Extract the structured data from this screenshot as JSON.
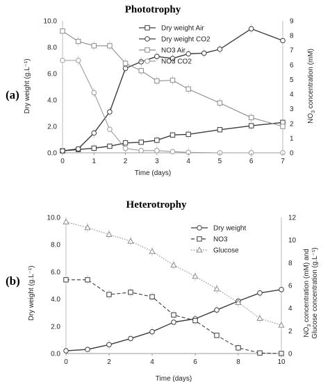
{
  "chart_data": [
    {
      "panel_label": "(a)",
      "type": "line",
      "title": "Phototrophy",
      "xlabel": "Time (days)",
      "ylabel_left": "Dry weight (g.L⁻¹)",
      "ylabel_right_parts": [
        "NO",
        "3",
        " concentration (mM)"
      ],
      "xlim": [
        0,
        7
      ],
      "ylim_left": [
        0,
        10
      ],
      "ylim_right": [
        0,
        9
      ],
      "x_ticks": [
        "0",
        "1",
        "2",
        "3",
        "4",
        "5",
        "6",
        "7"
      ],
      "y_left_ticks": [
        "0.0",
        "2.0",
        "4.0",
        "6.0",
        "8.0",
        "10.0"
      ],
      "y_right_ticks": [
        "0",
        "1",
        "2",
        "3",
        "4",
        "5",
        "6",
        "7",
        "8",
        "9"
      ],
      "legend_position": "right",
      "series": [
        {
          "name": "Dry weight Air",
          "axis": "left",
          "marker": "square",
          "line": "solid",
          "color": "#3a3a3a",
          "x": [
            0,
            0.5,
            1,
            1.5,
            2,
            2.5,
            3,
            3.5,
            4,
            5,
            6,
            7
          ],
          "y": [
            0.15,
            0.25,
            0.35,
            0.5,
            0.75,
            0.8,
            0.95,
            1.35,
            1.4,
            1.75,
            2.05,
            2.3
          ]
        },
        {
          "name": "Dry weight CO2",
          "axis": "left",
          "marker": "circle",
          "line": "solid",
          "color": "#3a3a3a",
          "x": [
            0,
            0.5,
            1,
            1.5,
            2,
            2.5,
            3,
            3.5,
            4,
            4.5,
            5,
            6,
            7
          ],
          "y": [
            0.15,
            0.3,
            1.5,
            3.1,
            6.4,
            6.9,
            7.3,
            7.15,
            7.5,
            7.55,
            7.85,
            9.4,
            8.5
          ]
        },
        {
          "name": "NO3 Air",
          "axis": "right",
          "marker": "square",
          "line": "solid",
          "color": "#8a8a8a",
          "x": [
            0,
            0.5,
            1,
            1.5,
            2,
            2.5,
            3,
            3.5,
            4,
            5,
            6,
            7
          ],
          "y": [
            8.3,
            7.6,
            7.3,
            7.3,
            6.1,
            5.6,
            4.9,
            4.95,
            4.35,
            3.4,
            2.4,
            1.8
          ]
        },
        {
          "name": "NO3 CO2",
          "axis": "right",
          "marker": "circle",
          "line": "solid",
          "color": "#9a9a9a",
          "x": [
            0,
            0.5,
            1,
            1.5,
            2,
            2.5,
            3,
            3.5,
            4,
            5,
            6,
            7
          ],
          "y": [
            6.3,
            6.3,
            4.1,
            1.6,
            0.3,
            0.15,
            0.15,
            0.08,
            0.03,
            0.0,
            0.0,
            0.0
          ]
        }
      ]
    },
    {
      "panel_label": "(b)",
      "type": "line",
      "title": "Heterotrophy",
      "xlabel": "Time (days)",
      "ylabel_left": "Dry weight (g.L⁻¹)",
      "ylabel_right_line1_parts": [
        "NO",
        "3",
        " concentration (mM) and"
      ],
      "ylabel_right_line2": "Glucose concentration (g.L⁻¹)",
      "xlim": [
        0,
        10
      ],
      "ylim_left": [
        0,
        10
      ],
      "ylim_right": [
        0,
        12
      ],
      "x_ticks": [
        "0",
        "2",
        "4",
        "6",
        "8",
        "10"
      ],
      "y_left_ticks": [
        "0.0",
        "2.0",
        "4.0",
        "6.0",
        "8.0",
        "10.0"
      ],
      "y_right_ticks": [
        "0",
        "2",
        "4",
        "6",
        "8",
        "10",
        "12"
      ],
      "legend_position": "top-right",
      "series": [
        {
          "name": "Dry weight",
          "axis": "left",
          "marker": "circle",
          "line": "solid",
          "color": "#3a3a3a",
          "x": [
            0,
            1,
            2,
            3,
            4,
            5,
            6,
            7,
            8,
            9,
            10
          ],
          "y": [
            0.2,
            0.3,
            0.65,
            1.1,
            1.6,
            2.3,
            2.55,
            3.2,
            3.85,
            4.45,
            4.7
          ]
        },
        {
          "name": "NO3",
          "axis": "right",
          "marker": "square",
          "line": "dashed",
          "color": "#3a3a3a",
          "x": [
            0,
            1,
            2,
            3,
            4,
            5,
            6,
            7,
            8,
            9,
            10
          ],
          "y": [
            6.5,
            6.5,
            5.2,
            5.4,
            5.0,
            3.4,
            2.9,
            1.6,
            0.5,
            0.05,
            0.0
          ]
        },
        {
          "name": "Glucose",
          "axis": "right",
          "marker": "triangle",
          "line": "dotted",
          "color": "#8a8a8a",
          "x": [
            0,
            1,
            2,
            3,
            4,
            5,
            6,
            7,
            8,
            9,
            10
          ],
          "y": [
            11.6,
            11.1,
            10.5,
            9.9,
            9.0,
            7.8,
            6.8,
            5.7,
            4.5,
            3.1,
            2.5
          ]
        }
      ]
    }
  ]
}
